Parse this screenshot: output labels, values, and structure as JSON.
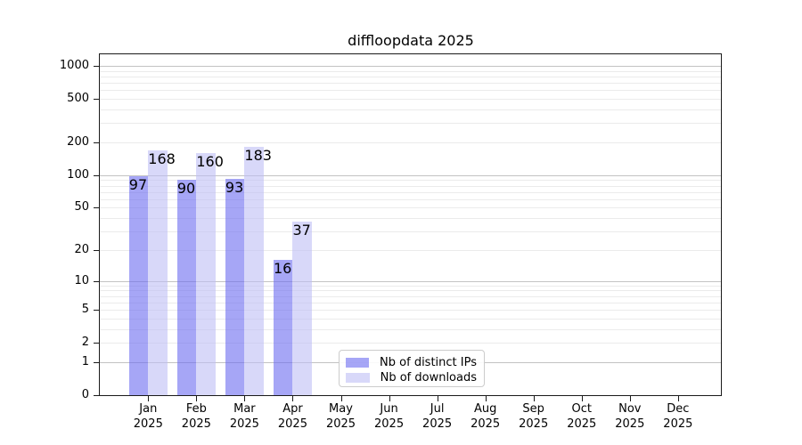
{
  "title": "diffloopdata 2025",
  "chart_data": {
    "type": "bar",
    "title": "diffloopdata 2025",
    "categories": [
      "Jan 2025",
      "Feb 2025",
      "Mar 2025",
      "Apr 2025",
      "May 2025",
      "Jun 2025",
      "Jul 2025",
      "Aug 2025",
      "Sep 2025",
      "Oct 2025",
      "Nov 2025",
      "Dec 2025"
    ],
    "series": [
      {
        "name": "Nb of distinct IPs",
        "color": "rgba(107,107,240,0.6)",
        "values": [
          97,
          90,
          93,
          16,
          0,
          0,
          0,
          0,
          0,
          0,
          0,
          0
        ]
      },
      {
        "name": "Nb of downloads",
        "color": "rgba(190,190,245,0.6)",
        "values": [
          168,
          160,
          183,
          37,
          0,
          0,
          0,
          0,
          0,
          0,
          0,
          0
        ]
      }
    ],
    "yscale": "log1p",
    "ylim": [
      0,
      1000
    ],
    "yticks": [
      0,
      1,
      2,
      5,
      10,
      20,
      50,
      100,
      200,
      500,
      1000
    ],
    "grid": "both",
    "legend_position": "lower center"
  },
  "colors": {
    "major_grid": "#c3c3c3",
    "minor_grid": "#ebebeb",
    "spine": "#1a1a1a",
    "background": "#ffffff",
    "text": "#000000"
  }
}
